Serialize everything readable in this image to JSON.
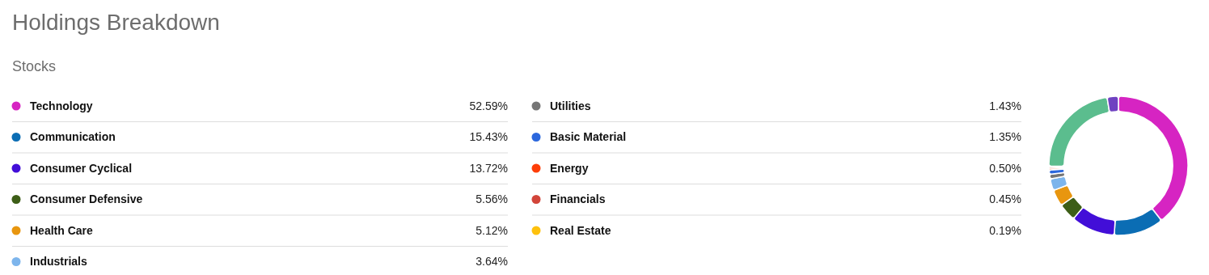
{
  "chart_data": {
    "type": "donut",
    "title": "Holdings Breakdown",
    "subtitle": "Stocks",
    "categories": [
      "Technology",
      "Communication",
      "Consumer Cyclical",
      "Consumer Defensive",
      "Health Care",
      "Industrials",
      "Utilities",
      "Basic Material",
      "Energy",
      "Financials",
      "Real Estate",
      null,
      null
    ],
    "values": [
      52.59,
      15.43,
      13.72,
      5.56,
      5.12,
      3.64,
      1.43,
      1.35,
      0.5,
      0.45,
      0.19,
      30,
      3.5
    ],
    "value_labels": [
      "52.59%",
      "15.43%",
      "13.72%",
      "5.56%",
      "5.12%",
      "3.64%",
      "1.43%",
      "1.35%",
      "0.50%",
      "0.45%",
      "0.19%",
      null,
      null
    ],
    "colors": [
      "#d624c2",
      "#0b6db4",
      "#420ed8",
      "#3d5e17",
      "#e8960f",
      "#7db5ec",
      "#767676",
      "#2b67dd",
      "#fd3e08",
      "#d2453a",
      "#fec10d",
      "#5bbd8e",
      "#6f42c1"
    ],
    "legend": "left"
  }
}
